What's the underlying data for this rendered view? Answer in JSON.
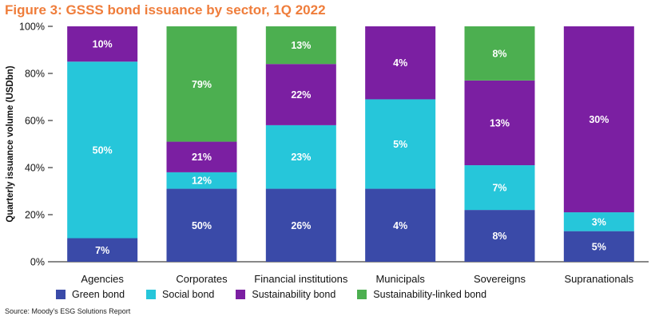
{
  "title": "Figure 3: GSSS bond issuance by sector, 1Q 2022",
  "source": "Source: Moody's ESG Solutions Report",
  "colors": {
    "green_bond": "#3a4aa8",
    "social_bond": "#26c6da",
    "sustainability_bond": "#7b1fa2",
    "sustainability_linked_bond": "#4caf50",
    "title": "#ef7d3b"
  },
  "chart_data": {
    "type": "bar",
    "stacked": true,
    "ylabel": "Quarterly issuance volume (USDbn)",
    "ylim": [
      0,
      100
    ],
    "yticks": [
      "0%",
      "20%",
      "40%",
      "60%",
      "80%",
      "100%"
    ],
    "grid": false,
    "legend_position": "bottom",
    "categories": [
      "Agencies",
      "Corporates",
      "Financial institutions",
      "Municipals",
      "Sovereigns",
      "Supranationals"
    ],
    "series": [
      {
        "name": "Green bond",
        "color": "#3a4aa8",
        "values": [
          10,
          31,
          31,
          31,
          22,
          13
        ],
        "labels": [
          "7%",
          "50%",
          "26%",
          "4%",
          "8%",
          "5%"
        ]
      },
      {
        "name": "Social bond",
        "color": "#26c6da",
        "values": [
          75,
          7,
          27,
          38,
          19,
          8
        ],
        "labels": [
          "50%",
          "12%",
          "23%",
          "5%",
          "7%",
          "3%"
        ]
      },
      {
        "name": "Sustainability bond",
        "color": "#7b1fa2",
        "values": [
          15,
          13,
          26,
          31,
          36,
          79
        ],
        "labels": [
          "10%",
          "21%",
          "22%",
          "4%",
          "13%",
          "30%"
        ]
      },
      {
        "name": "Sustainability-linked bond",
        "color": "#4caf50",
        "values": [
          0,
          49,
          16,
          0,
          23,
          0
        ],
        "labels": [
          "",
          "79%",
          "13%",
          "",
          "8%",
          ""
        ]
      }
    ]
  }
}
